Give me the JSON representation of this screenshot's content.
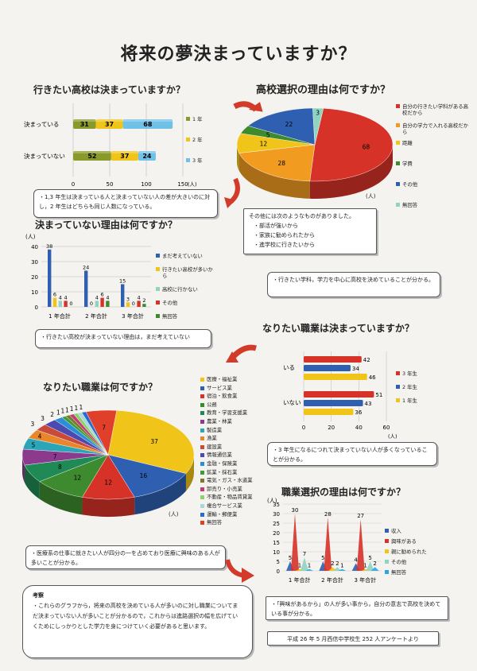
{
  "page": {
    "title": "将来の夢決まっていますか？",
    "footer": "平成 26 年 5 月西信中学校生 252 人アンケートより"
  },
  "colors": {
    "blue": "#2e5fb0",
    "red": "#d63228",
    "yellow": "#f0c419",
    "orange": "#f29b21",
    "green": "#3d8a2f",
    "lightblue": "#6fc1e8",
    "olive": "#8a9a2a",
    "teal": "#8fd3c0"
  },
  "notes": {
    "n1": "・1,3 年生は決まっている人と決まっていない人の差が大きいのに対し，2 年生はどちらも同じ人数になっている。",
    "n2_head": "その他には次のようなものがありました。",
    "n2_items": [
      "・部活が強いから",
      "・家族に勧められたから",
      "・進学校に行きたいから"
    ],
    "n3": "・行きたい学科，学力を中心に高校を決めていることが分かる。",
    "n4": "・行きたい高校が決まっていない理由は，まだ考えていない",
    "n5": "・3 年生になるにつれて決まっていない人が多くなっていることが分かる。",
    "n6": "・医療系の仕事に就きたい人が四分の一を占めており医療に興味のある人が多いことが分かる。",
    "n7": "・「興味があるから」の人が多い事から，自分の意志で高校を決めている事が分かる。",
    "conclusion_head": "考察",
    "conclusion": "・これらのグラフから，将来の高校を決めている人が多いのに対し職業についてまだ決まっていない人が多いことが分かるので，これからは進路選択の幅を広げていくためにしっかりとした学力を身につけていく必要があると思います。"
  },
  "chart_data": [
    {
      "id": "c1",
      "type": "bar",
      "orientation": "horizontal",
      "stacked": true,
      "title": "行きたい高校は決まっていますか？",
      "categories": [
        "決まっている",
        "決まっていない"
      ],
      "series": [
        {
          "name": "1 年",
          "values": [
            31,
            52
          ],
          "color": "#8a9a2a"
        },
        {
          "name": "2 年",
          "values": [
            37,
            37
          ],
          "color": "#f0c419"
        },
        {
          "name": "3 年",
          "values": [
            68,
            24
          ],
          "color": "#6fc1e8"
        }
      ],
      "xticks": [
        "0",
        "50",
        "100",
        "150"
      ],
      "xlim": [
        0,
        150
      ],
      "unit": "(人)"
    },
    {
      "id": "c2",
      "type": "pie",
      "title": "高校選択の理由は何ですか？",
      "labels": [
        "自分の行きたい学科がある高校だから",
        "自分の学力で入れる高校だから",
        "距離",
        "学費",
        "その他",
        "無回答"
      ],
      "values": [
        68,
        28,
        12,
        5,
        22,
        3
      ],
      "colors": [
        "#d63228",
        "#f29b21",
        "#f0c419",
        "#3d8a2f",
        "#2e5fb0",
        "#8fd3c0"
      ],
      "unit": "(人)"
    },
    {
      "id": "c3",
      "type": "bar",
      "title": "決まっていない理由は何ですか？",
      "unit": "(人)",
      "categories": [
        "1 年合計",
        "2 年合計",
        "3 年合計"
      ],
      "series": [
        {
          "name": "まだ考えていない",
          "values": [
            38,
            24,
            15
          ],
          "color": "#2e5fb0"
        },
        {
          "name": "行きたい高校が多いから",
          "values": [
            6,
            0,
            3
          ],
          "color": "#f0c419"
        },
        {
          "name": "高校に行かない",
          "values": [
            4,
            4,
            0
          ],
          "color": "#8fd3c0"
        },
        {
          "name": "その他",
          "values": [
            4,
            6,
            4
          ],
          "color": "#d63228"
        },
        {
          "name": "無回答",
          "values": [
            0,
            4,
            2
          ],
          "color": "#3d8a2f"
        }
      ],
      "yticks": [
        "0",
        "10",
        "20",
        "30",
        "40"
      ],
      "ylim": [
        0,
        40
      ]
    },
    {
      "id": "c4",
      "type": "bar",
      "orientation": "horizontal",
      "title": "なりたい職業は決まっていますか？",
      "categories": [
        "いる",
        "いない"
      ],
      "series": [
        {
          "name": "3 年生",
          "values": [
            42,
            51
          ],
          "color": "#d63228"
        },
        {
          "name": "2 年生",
          "values": [
            34,
            43
          ],
          "color": "#2e5fb0"
        },
        {
          "name": "1 年生",
          "values": [
            46,
            36
          ],
          "color": "#f0c419"
        }
      ],
      "xticks": [
        "0",
        "20",
        "40",
        "60"
      ],
      "xlim": [
        0,
        60
      ],
      "unit": "(人)"
    },
    {
      "id": "c5",
      "type": "pie",
      "title": "なりたい職業は何ですか？",
      "labels": [
        "医療・福祉業",
        "サービス業",
        "宿泊・飲食業",
        "公務",
        "教育・学習支援業",
        "農業・林業",
        "製造業",
        "漁業",
        "建設業",
        "情報通信業",
        "金融・保険業",
        "鉱業・採石業",
        "電気・ガス・水道業",
        "卸売り・小売業",
        "不動産・物品賃貸業",
        "複合サービス業",
        "運輸・郵便業",
        "無回答"
      ],
      "values": [
        37,
        16,
        12,
        12,
        8,
        7,
        5,
        4,
        3,
        3,
        2,
        1,
        1,
        1,
        1,
        1,
        1,
        7
      ],
      "colors": [
        "#f0c419",
        "#2e5fb0",
        "#d63228",
        "#3d8a2f",
        "#1f8a55",
        "#8b3a8e",
        "#2aa6b8",
        "#e8862a",
        "#c94a3a",
        "#4a4ab0",
        "#2a8fd6",
        "#3f9a3a",
        "#7a7a2a",
        "#c23a7a",
        "#8ed06a",
        "#a8d8d8",
        "#2a6ad0",
        "#e0402a"
      ],
      "unit": "(人)"
    },
    {
      "id": "c6",
      "type": "area",
      "title": "職業選択の理由は何ですか？",
      "unit": "(人)",
      "categories": [
        "1 年合計",
        "2 年合計",
        "3 年合計"
      ],
      "series": [
        {
          "name": "収入",
          "values": [
            5,
            5,
            4
          ],
          "color": "#2e5fb0"
        },
        {
          "name": "興味がある",
          "values": [
            30,
            28,
            27
          ],
          "color": "#d63228"
        },
        {
          "name": "親に勧められた",
          "values": [
            1,
            2,
            1
          ],
          "color": "#f0c419"
        },
        {
          "name": "その他",
          "values": [
            7,
            2,
            5
          ],
          "color": "#8fd3c0"
        },
        {
          "name": "無回答",
          "values": [
            1,
            1,
            2
          ],
          "color": "#2aa6e0"
        }
      ],
      "yticks": [
        "0",
        "5",
        "10",
        "15",
        "20",
        "25",
        "30",
        "35"
      ],
      "ylim": [
        0,
        35
      ]
    }
  ]
}
